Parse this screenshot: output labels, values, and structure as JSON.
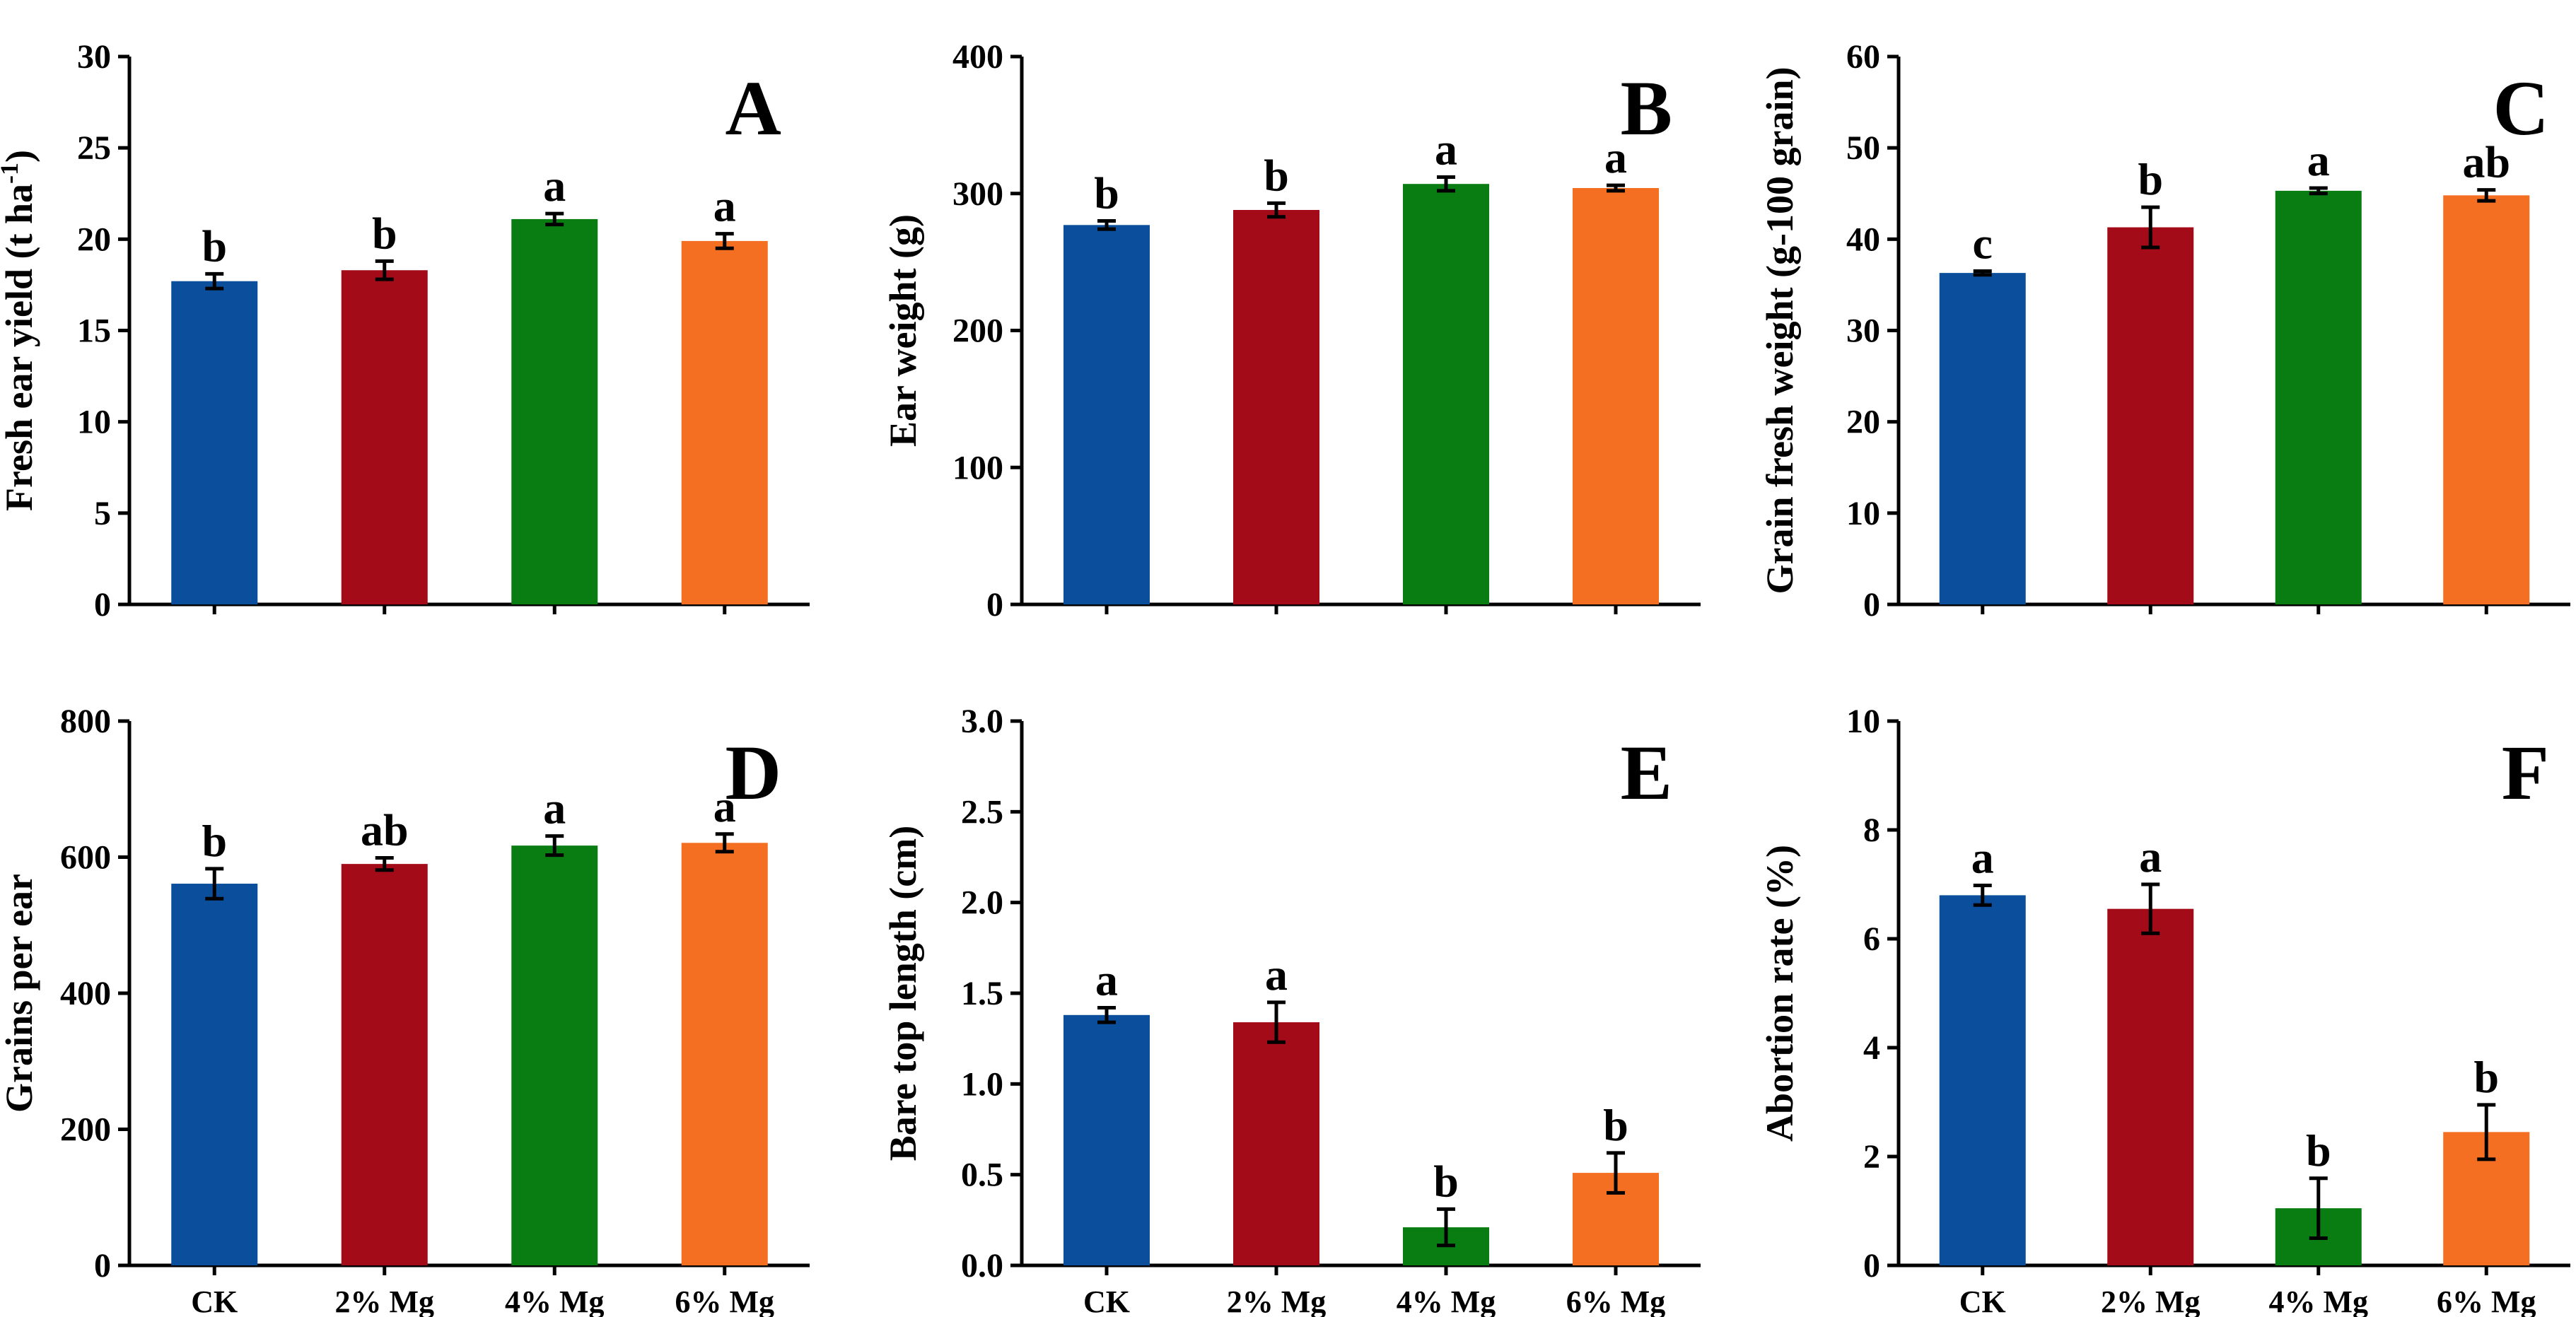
{
  "colors": {
    "CK": "#0b4f9c",
    "2% Mg": "#a30b18",
    "4% Mg": "#0a7d12",
    "6% Mg": "#f46f21"
  },
  "chart_data": [
    {
      "type": "bar",
      "panel": "A",
      "ylabel": "Fresh ear yield (t ha",
      "ylabel_sup": "-1",
      "ylabel_close": ")",
      "categories": [
        "CK",
        "2% Mg",
        "4% Mg",
        "6% Mg"
      ],
      "values": [
        17.7,
        18.3,
        21.1,
        19.9
      ],
      "errors": [
        0.4,
        0.5,
        0.3,
        0.4
      ],
      "significance": [
        "b",
        "b",
        "a",
        "a"
      ],
      "ylim": [
        0,
        30
      ],
      "yticks": [
        0,
        5,
        10,
        15,
        20,
        25,
        30
      ]
    },
    {
      "type": "bar",
      "panel": "B",
      "ylabel": "Ear weight (g)",
      "categories": [
        "CK",
        "2% Mg",
        "4% Mg",
        "6% Mg"
      ],
      "values": [
        277,
        288,
        307,
        304
      ],
      "errors": [
        3,
        5,
        5,
        2
      ],
      "significance": [
        "b",
        "b",
        "a",
        "a"
      ],
      "ylim": [
        0,
        400
      ],
      "yticks": [
        0,
        100,
        200,
        300,
        400
      ]
    },
    {
      "type": "bar",
      "panel": "C",
      "ylabel": "Grain fresh weight (g-100 grain)",
      "categories": [
        "CK",
        "2% Mg",
        "4% Mg",
        "6% Mg"
      ],
      "values": [
        36.3,
        41.3,
        45.3,
        44.8
      ],
      "errors": [
        0.2,
        2.2,
        0.3,
        0.6
      ],
      "significance": [
        "c",
        "b",
        "a",
        "ab"
      ],
      "ylim": [
        0,
        60
      ],
      "yticks": [
        0,
        10,
        20,
        30,
        40,
        50,
        60
      ]
    },
    {
      "type": "bar",
      "panel": "D",
      "ylabel": "Grains per ear",
      "categories": [
        "CK",
        "2% Mg",
        "4% Mg",
        "6% Mg"
      ],
      "values": [
        561,
        590,
        617,
        621
      ],
      "errors": [
        22,
        9,
        14,
        13
      ],
      "significance": [
        "b",
        "ab",
        "a",
        "a"
      ],
      "ylim": [
        0,
        800
      ],
      "yticks": [
        0,
        200,
        400,
        600,
        800
      ]
    },
    {
      "type": "bar",
      "panel": "E",
      "ylabel": "Bare top length (cm)",
      "categories": [
        "CK",
        "2% Mg",
        "4% Mg",
        "6% Mg"
      ],
      "values": [
        1.38,
        1.34,
        0.21,
        0.51
      ],
      "errors": [
        0.04,
        0.11,
        0.1,
        0.11
      ],
      "significance": [
        "a",
        "a",
        "b",
        "b"
      ],
      "ylim": [
        0,
        3.0
      ],
      "yticks": [
        "0.0",
        "0.5",
        "1.0",
        "1.5",
        "2.0",
        "2.5",
        "3.0"
      ]
    },
    {
      "type": "bar",
      "panel": "F",
      "ylabel": "Abortion rate (%)",
      "categories": [
        "CK",
        "2% Mg",
        "4% Mg",
        "6% Mg"
      ],
      "values": [
        6.8,
        6.55,
        1.05,
        2.45
      ],
      "errors": [
        0.18,
        0.45,
        0.55,
        0.5
      ],
      "significance": [
        "a",
        "a",
        "b",
        "b"
      ],
      "ylim": [
        0,
        10
      ],
      "yticks": [
        0,
        2,
        4,
        6,
        8,
        10
      ]
    }
  ]
}
